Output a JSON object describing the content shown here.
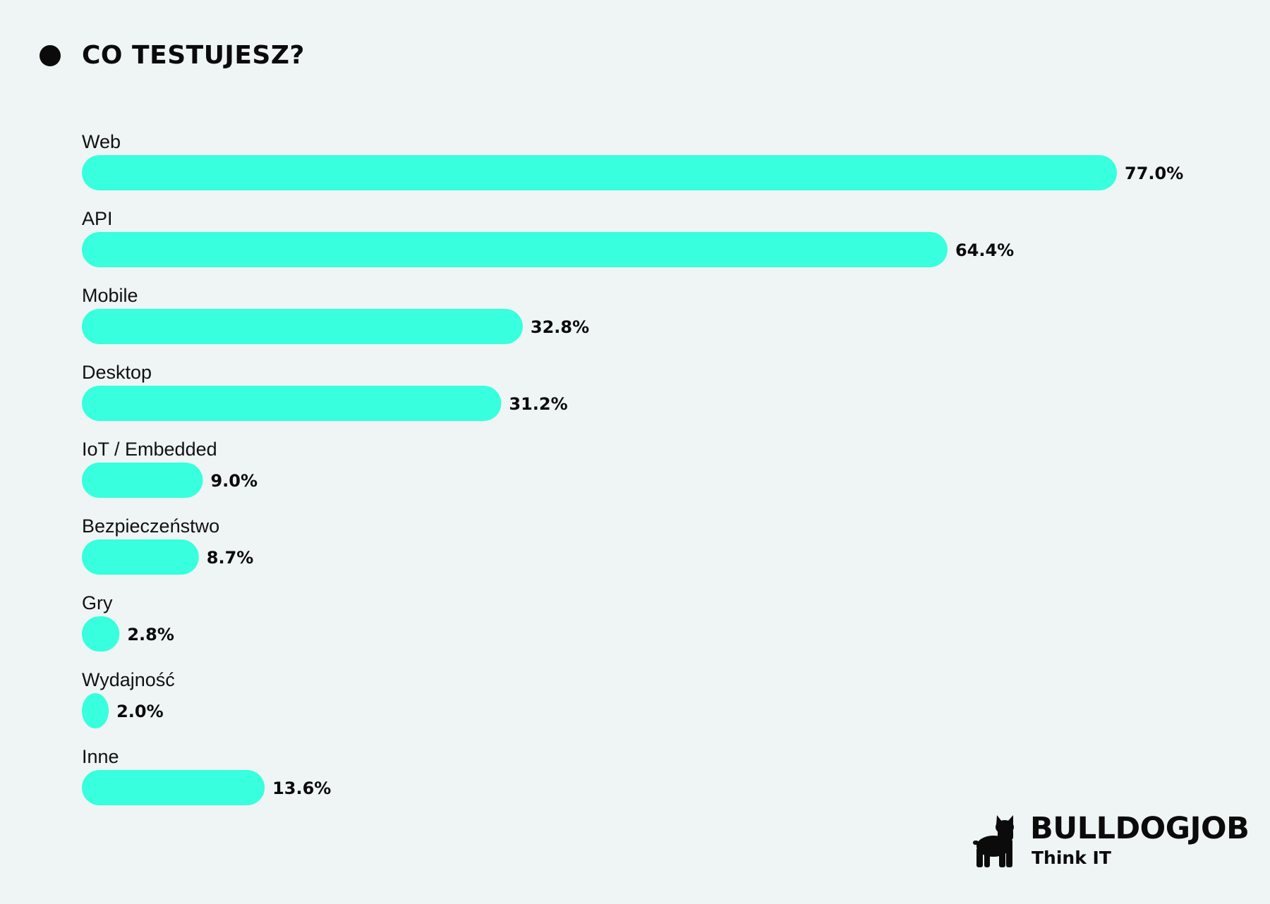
{
  "header": {
    "title": "CO TESTUJESZ?"
  },
  "brand": {
    "name": "BULLDOGJOB",
    "tagline": "Think IT",
    "logo_icon": "bulldog-icon"
  },
  "colors": {
    "bar": "#38ffde",
    "background": "#eef5f4",
    "text": "#0b0b0b"
  },
  "chart_data": {
    "type": "bar",
    "orientation": "horizontal",
    "title": "CO TESTUJESZ?",
    "categories": [
      "Web",
      "API",
      "Mobile",
      "Desktop",
      "IoT / Embedded",
      "Bezpieczeństwo",
      "Gry",
      "Wydajność",
      "Inne"
    ],
    "values": [
      77.0,
      64.4,
      32.8,
      31.2,
      9.0,
      8.7,
      2.8,
      2.0,
      13.6
    ],
    "value_labels": [
      "77.0%",
      "64.4%",
      "32.8%",
      "31.2%",
      "9.0%",
      "8.7%",
      "2.8%",
      "2.0%",
      "13.6%"
    ],
    "unit": "%",
    "xlabel": "",
    "ylabel": "",
    "xlim": [
      0,
      77.0
    ],
    "grid": false,
    "legend": "none"
  }
}
